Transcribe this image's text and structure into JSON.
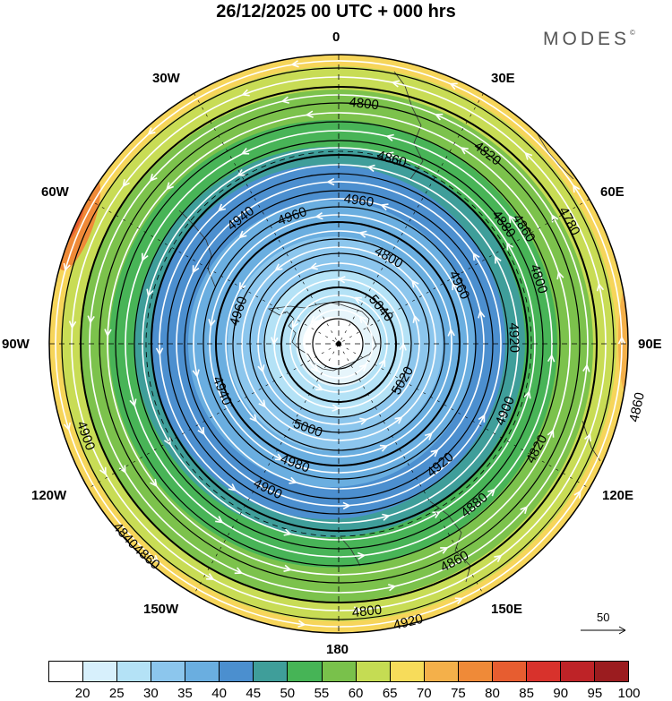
{
  "title": "26/12/2025  00 UTC  + 000 hrs",
  "brand": "MODES",
  "brand_mark": "©",
  "meridian_labels": {
    "m0": "0",
    "m30e": "30E",
    "m60e": "60E",
    "m90e": "90E",
    "m120e": "120E",
    "m150e": "150E",
    "m180": "180",
    "m150w": "150W",
    "m120w": "120W",
    "m90w": "90W",
    "m60w": "60W",
    "m30w": "30W"
  },
  "contour_labels": [
    "4780",
    "4800",
    "4820",
    "4840",
    "4860",
    "4880",
    "4900",
    "4920",
    "4940",
    "4960",
    "4980",
    "5000",
    "5020",
    "5040"
  ],
  "reference_vector": {
    "label": "50"
  },
  "colorbar": {
    "labels": [
      "20",
      "25",
      "30",
      "35",
      "40",
      "45",
      "50",
      "55",
      "60",
      "65",
      "70",
      "75",
      "80",
      "85",
      "90",
      "95",
      "100"
    ],
    "colors": [
      "#ffffff",
      "#d7f0fc",
      "#b4e2f6",
      "#8cc6ed",
      "#6aaee0",
      "#4b8fcf",
      "#3f9e9a",
      "#46b456",
      "#79c14b",
      "#c5dc53",
      "#f7dc5a",
      "#f4b04a",
      "#ef8a38",
      "#e75d30",
      "#d8322c",
      "#be2327",
      "#9b1c1f"
    ]
  }
}
